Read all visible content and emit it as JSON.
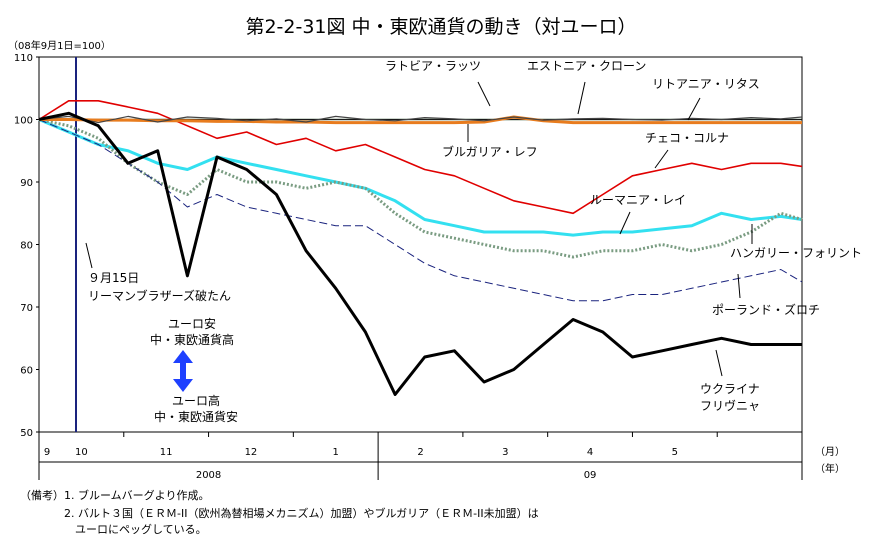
{
  "chart_data": {
    "type": "line",
    "title": "第2-2-31図 中・東欧通貨の動き（対ユーロ）",
    "index_note": "（08年9月1日=100）",
    "ylim": [
      50,
      110
    ],
    "y_ticks": [
      50,
      60,
      70,
      80,
      90,
      100,
      110
    ],
    "month_ticks": [
      "9",
      "10",
      "11",
      "12",
      "1",
      "2",
      "3",
      "4",
      "5"
    ],
    "year_labels": [
      "2008",
      "09"
    ],
    "month_unit": "（月）",
    "year_unit": "（年）",
    "x": [
      0,
      0.35,
      0.7,
      1.05,
      1.4,
      1.75,
      2.1,
      2.45,
      2.8,
      3.15,
      3.5,
      3.85,
      4.2,
      4.55,
      4.9,
      5.25,
      5.6,
      5.95,
      6.3,
      6.65,
      7.0,
      7.35,
      7.7,
      8.05,
      8.4,
      8.75,
      9.0
    ],
    "series": [
      {
        "name": "ラトビア・ラッツ",
        "color": "#444444",
        "style": "thin",
        "values": [
          100,
          100.5,
          99.5,
          100.5,
          99.6,
          100.4,
          100.2,
          99.8,
          100.1,
          99.6,
          100.5,
          100.0,
          99.8,
          100.3,
          100.1,
          99.8,
          100.4,
          99.9,
          100.1,
          100.2,
          100.0,
          99.9,
          100.2,
          100.0,
          100.3,
          100.1,
          100.4
        ]
      },
      {
        "name": "エストニア・クローン",
        "color": "#e87c1e",
        "style": "thick",
        "values": [
          100,
          100,
          99.9,
          99.9,
          99.8,
          99.8,
          99.7,
          99.7,
          99.6,
          99.6,
          99.5,
          99.5,
          99.5,
          99.5,
          99.5,
          99.6,
          100.4,
          99.8,
          99.5,
          99.5,
          99.5,
          99.5,
          99.5,
          99.5,
          99.5,
          99.5,
          99.5
        ]
      },
      {
        "name": "リトアニア・リタス",
        "color": "#1a1a1a",
        "style": "thin",
        "values": [
          100,
          100,
          100,
          100,
          100,
          100,
          100,
          100,
          100,
          100,
          100,
          100,
          100,
          100,
          100,
          100,
          100,
          100,
          100,
          100,
          100,
          100,
          100,
          100,
          100,
          100,
          100
        ]
      },
      {
        "name": "ブルガリア・レフ",
        "color": "#2e7d32",
        "style": "thin",
        "values": [
          100,
          100,
          100,
          100,
          100,
          100,
          100,
          100,
          100,
          100,
          100,
          100,
          100,
          100,
          100,
          100,
          100,
          100,
          100,
          100,
          100,
          100,
          100,
          100,
          100,
          100,
          100
        ]
      },
      {
        "name": "チェコ・コルナ",
        "color": "#e00000",
        "style": "normal",
        "values": [
          100,
          103,
          103,
          102,
          101,
          99,
          97,
          98,
          96,
          97,
          95,
          96,
          94,
          92,
          91,
          89,
          87,
          86,
          85,
          88,
          91,
          92,
          93,
          92,
          93,
          93,
          92.5
        ]
      },
      {
        "name": "ルーマニア・レイ",
        "color": "#33e0f0",
        "style": "thick",
        "values": [
          100,
          98,
          96,
          95,
          93,
          92,
          94,
          93,
          92,
          91,
          90,
          89,
          87,
          84,
          83,
          82,
          82,
          82,
          81.5,
          82,
          82,
          82.5,
          83,
          85,
          84,
          84.5,
          84
        ]
      },
      {
        "name": "ハンガリー・フォリント",
        "color": "#7a9c82",
        "style": "dotted",
        "values": [
          100,
          99,
          97,
          93,
          90,
          88,
          92,
          90,
          90,
          89,
          90,
          89,
          85,
          82,
          81,
          80,
          79,
          79,
          78,
          79,
          79,
          80,
          79,
          80,
          82,
          85,
          84
        ]
      },
      {
        "name": "ポーランド・ズロチ",
        "color": "#1a237e",
        "style": "dashed",
        "values": [
          100,
          98,
          96,
          93,
          90,
          86,
          88,
          86,
          85,
          84,
          83,
          83,
          80,
          77,
          75,
          74,
          73,
          72,
          71,
          71,
          72,
          72,
          73,
          74,
          75,
          76,
          74
        ]
      },
      {
        "name": "ウクライナ フリヴニャ",
        "color": "#000000",
        "style": "bold",
        "values": [
          100,
          101,
          99,
          93,
          95,
          75,
          94,
          92,
          88,
          79,
          73,
          66,
          56,
          62,
          63,
          58,
          60,
          64,
          68,
          66,
          62,
          63,
          64,
          65,
          64,
          64,
          64
        ]
      }
    ],
    "annotations": {
      "lehman": "９月15日\nリーマンブラザーズ破たん",
      "arrow_up": "ユーロ安\n中・東欧通貨高",
      "arrow_down": "ユーロ高\n中・東欧通貨安"
    }
  },
  "notes": [
    "（備考）1. ブルームバーグより作成。",
    "　　　　2. バルト３国（ＥＲＭ-II（欧州為替相場メカニズム）加盟）やブルガリア（ＥＲＭ-II未加盟）は",
    "　　　　　ユーロにペッグしている。"
  ]
}
